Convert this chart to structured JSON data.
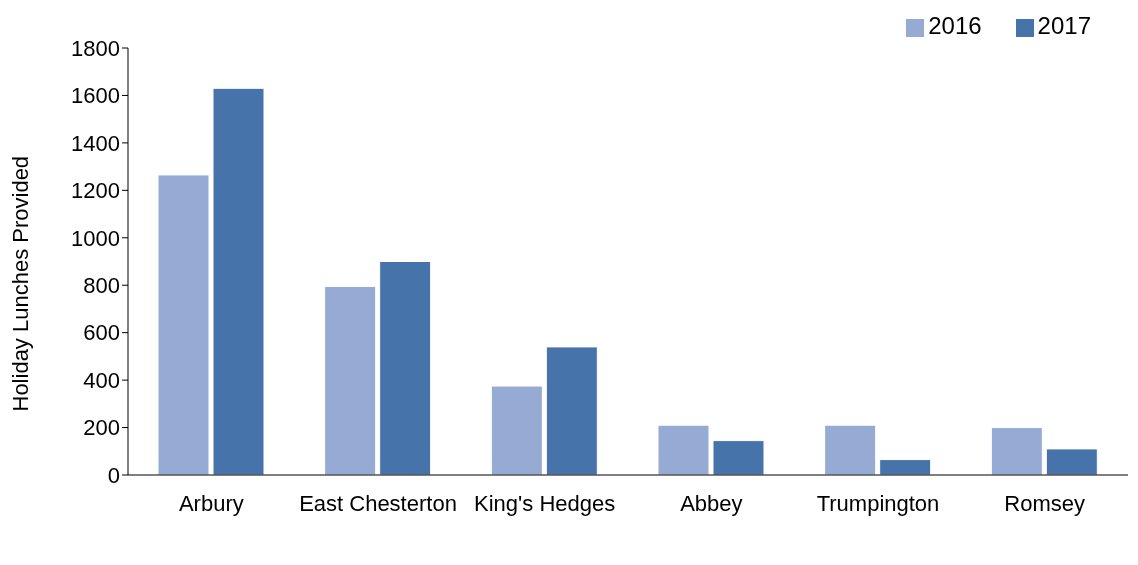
{
  "chart_data": {
    "type": "bar",
    "ylabel": "Holiday Lunches Provided",
    "categories": [
      "Arbury",
      "East Chesterton",
      "King's Hedges",
      "Abbey",
      "Trumpington",
      "Romsey"
    ],
    "series": [
      {
        "name": "2016",
        "color": "#95abd4",
        "values": [
          1265,
          795,
          375,
          210,
          210,
          200
        ]
      },
      {
        "name": "2017",
        "color": "#4674aa",
        "values": [
          1630,
          900,
          540,
          145,
          65,
          110
        ]
      }
    ],
    "ylim": [
      0,
      1800
    ],
    "yticks": [
      0,
      200,
      400,
      600,
      800,
      1000,
      1200,
      1400,
      1600,
      1800
    ],
    "grid": false,
    "legend": "top right"
  }
}
